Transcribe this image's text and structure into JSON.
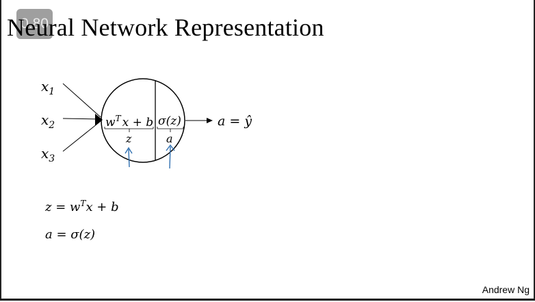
{
  "slide": {
    "title": "Neural Network Representation",
    "badge": "0.80",
    "author": "Andrew Ng"
  },
  "diagram": {
    "inputs": [
      "x1",
      "x2",
      "x3"
    ],
    "input_symbol": "x",
    "input_subscripts": [
      "1",
      "2",
      "3"
    ],
    "left_half_label": "w",
    "left_half_sup": "T",
    "left_half_rest": "x + b",
    "right_half_label": "σ(z)",
    "z_label": "z",
    "a_label": "a",
    "output_label": "a = ŷ"
  },
  "equations": {
    "eq1_lhs": "z = w",
    "eq1_sup": "T",
    "eq1_rhs": "x + b",
    "eq2": "a = σ(z)"
  },
  "colors": {
    "annotation_arrow": "#2f6fb0"
  }
}
